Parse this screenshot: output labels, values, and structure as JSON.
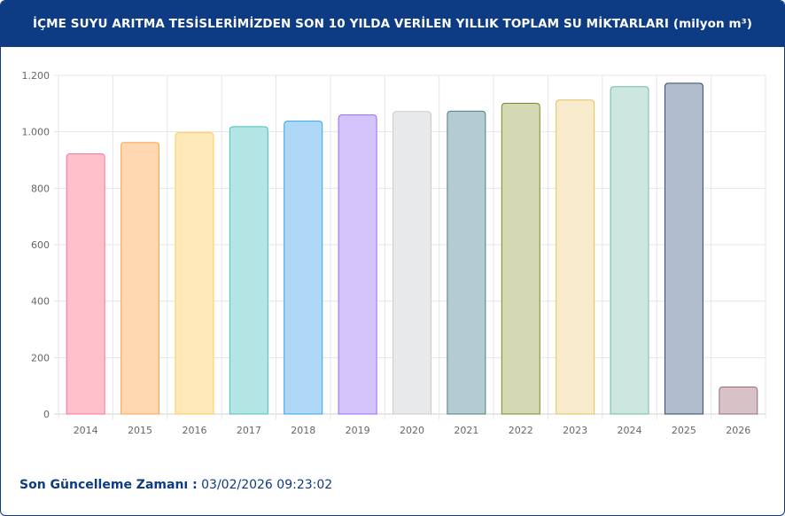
{
  "header": {
    "title": "İÇME SUYU ARITMA TESİSLERİMİZDEN SON 10 YILDA VERİLEN YILLIK TOPLAM SU MİKTARLARI (milyon m³)"
  },
  "footer": {
    "label": "Son Güncelleme Zamanı :",
    "value": "03/02/2026 09:23:02"
  },
  "chart_data": {
    "type": "bar",
    "title": "İÇME SUYU ARITMA TESİSLERİMİZDEN SON 10 YILDA VERİLEN YILLIK TOPLAM SU MİKTARLARI (milyon m³)",
    "xlabel": "",
    "ylabel": "",
    "categories": [
      "2014",
      "2015",
      "2016",
      "2017",
      "2018",
      "2019",
      "2020",
      "2021",
      "2022",
      "2023",
      "2024",
      "2025",
      "2026"
    ],
    "values": [
      922,
      962,
      997,
      1018,
      1038,
      1060,
      1072,
      1073,
      1101,
      1113,
      1160,
      1172,
      96
    ],
    "ylim": [
      0,
      1200
    ],
    "yticks": [
      0,
      200,
      400,
      600,
      800,
      1000,
      1200
    ],
    "ytick_labels": [
      "0",
      "200",
      "400",
      "600",
      "800",
      "1.000",
      "1.200"
    ],
    "grid": true,
    "legend": "none",
    "fill_colors": [
      "#ffc0cc",
      "#ffd8b1",
      "#ffe9b8",
      "#b4e5e5",
      "#aed8f6",
      "#d5c4fb",
      "#e8e9eb",
      "#b3ccd1",
      "#d4d9b3",
      "#f7ebcc",
      "#cce7e0",
      "#b1bccd",
      "#d7c2c7"
    ],
    "border_colors": [
      "#ff7393",
      "#ffa24c",
      "#ffcb55",
      "#4bc0c0",
      "#36a2eb",
      "#9966ff",
      "#c9cbcf",
      "#537a82",
      "#7a8a2a",
      "#e6c15a",
      "#6fbfa8",
      "#2e4a6e",
      "#9c6b76"
    ]
  }
}
